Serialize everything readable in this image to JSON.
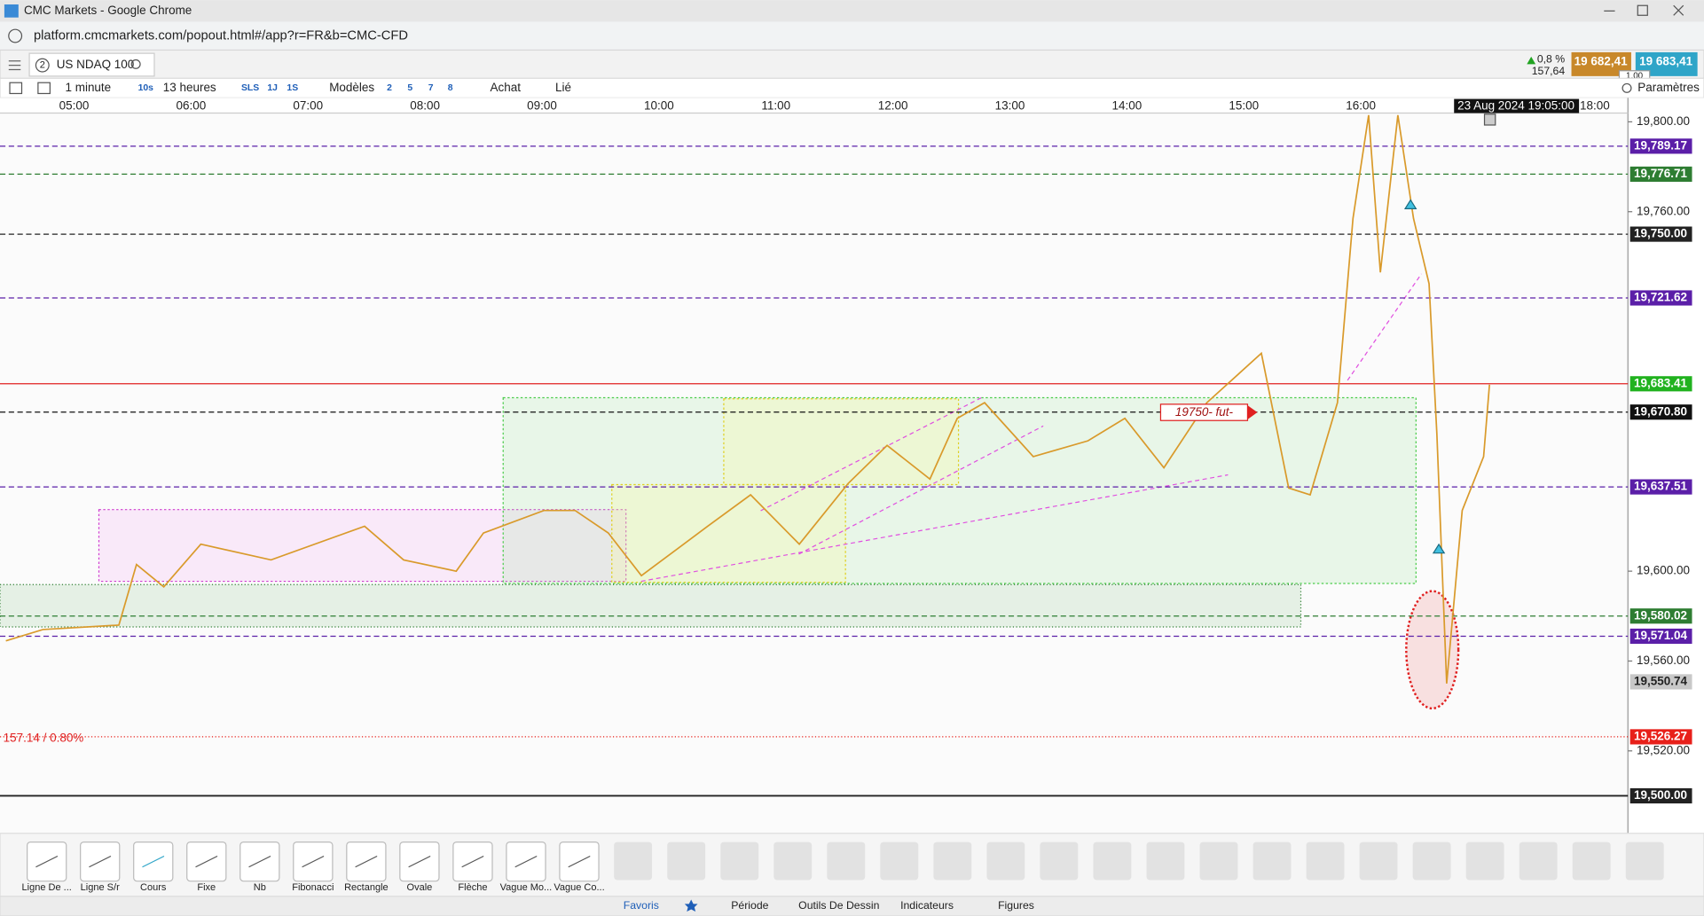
{
  "browser": {
    "title": "CMC Markets - Google Chrome",
    "url": "platform.cmcmarkets.com/popout.html#/app?r=FR&b=CMC-CFD"
  },
  "header": {
    "badge": "2",
    "instrument": "US NDAQ 100",
    "change": "0,8 %",
    "change_points": "157,64",
    "sell": "19 682,41",
    "buy": "19 683,41",
    "quantity": "1,00"
  },
  "toolbar": {
    "items": [
      "1 minute",
      "10s",
      "13 heures",
      "SLS",
      "1J",
      "1S",
      "Modèles",
      "2",
      "5",
      "7",
      "8",
      "Achat",
      "Lié"
    ],
    "settings": "Paramètres"
  },
  "chart": {
    "type": "line",
    "color": "#d99a2b",
    "x": [
      "04:25",
      "04:44",
      "05:23",
      "05:32",
      "05:46",
      "06:05",
      "06:41",
      "07:29",
      "07:49",
      "08:16",
      "08:30",
      "09:01",
      "09:17",
      "09:34",
      "09:51",
      "10:25",
      "10:47",
      "11:12",
      "11:37",
      "11:57",
      "12:19",
      "12:33",
      "12:47",
      "13:12",
      "13:40",
      "13:59",
      "14:19",
      "14:41",
      "15:09",
      "15:23",
      "15:34",
      "15:48",
      "15:56",
      "16:04",
      "16:10",
      "16:19",
      "16:27",
      "16:35",
      "16:39",
      "16:44",
      "16:52",
      "17:03",
      "17:06"
    ],
    "values": [
      19569,
      19574,
      19576,
      19603,
      19593,
      19612,
      19605,
      19620,
      19605,
      19600,
      19617,
      19627,
      19627,
      19617,
      19598,
      19620,
      19634,
      19612,
      19639,
      19656,
      19641,
      19668,
      19675,
      19651,
      19658,
      19668,
      19646,
      19675,
      19697,
      19637,
      19634,
      19675,
      19757,
      19803,
      19733,
      19803,
      19757,
      19728,
      19661,
      19550,
      19627,
      19651,
      19683
    ],
    "xlim": [
      "04:22",
      "18:17"
    ],
    "xticks": [
      "05:00",
      "06:00",
      "07:00",
      "08:00",
      "09:00",
      "10:00",
      "11:00",
      "12:00",
      "13:00",
      "14:00",
      "15:00",
      "16:00",
      "18:00"
    ],
    "crosshair_label": "23 Aug 2024 19:05:00",
    "ylim": [
      19483.3,
      19803.9
    ],
    "yticks": [
      {
        "value": 19800,
        "label": "19,800.00"
      },
      {
        "value": 19760,
        "label": "19,760.00"
      },
      {
        "value": 19600,
        "label": "19,600.00"
      },
      {
        "value": 19560,
        "label": "19,560.00"
      },
      {
        "value": 19520,
        "label": "19,520.00"
      }
    ],
    "levels": [
      {
        "value": 19789.17,
        "label": "19,789.17",
        "color": "#5b1fa8",
        "line": "dashed"
      },
      {
        "value": 19776.71,
        "label": "19,776.71",
        "color": "#2e7d32",
        "line": "dashed"
      },
      {
        "value": 19750,
        "label": "19,750.00",
        "color": "#222222",
        "line": "dashed"
      },
      {
        "value": 19721.62,
        "label": "19,721.62",
        "color": "#5b1fa8",
        "line": "dashed"
      },
      {
        "value": 19683.41,
        "label": "19,683.41",
        "color": "#21b21f",
        "line": "solid-red"
      },
      {
        "value": 19670.8,
        "label": "19,670.80",
        "color": "#111111",
        "line": "dashed"
      },
      {
        "value": 19637.51,
        "label": "19,637.51",
        "color": "#5b1fa8",
        "line": "dashed"
      },
      {
        "value": 19580.02,
        "label": "19,580.02",
        "color": "#2e7d32",
        "line": "dashed"
      },
      {
        "value": 19571.04,
        "label": "19,571.04",
        "color": "#5b1fa8",
        "line": "dashed"
      },
      {
        "value": 19550.74,
        "label": "19,550.74",
        "color": "#c8c8c8",
        "line": "none"
      },
      {
        "value": 19526.27,
        "label": "19,526.27",
        "color": "#e8201a",
        "line": "dotted"
      },
      {
        "value": 19500,
        "label": "19,500.00",
        "color": "#222222",
        "line": "solid"
      }
    ],
    "annotations": {
      "range": "157.14 / 0.80%",
      "note": "19750- fut-"
    }
  },
  "tools": [
    "Ligne De ...",
    "Ligne S/r",
    "Cours",
    "Fixe",
    "Nb",
    "Fibonacci",
    "Rectangle",
    "Ovale",
    "Flèche",
    "Vague Mo...",
    "Vague Co..."
  ],
  "tabs": [
    "Favoris",
    "Période",
    "Outils De Dessin",
    "Indicateurs",
    "Figures"
  ]
}
